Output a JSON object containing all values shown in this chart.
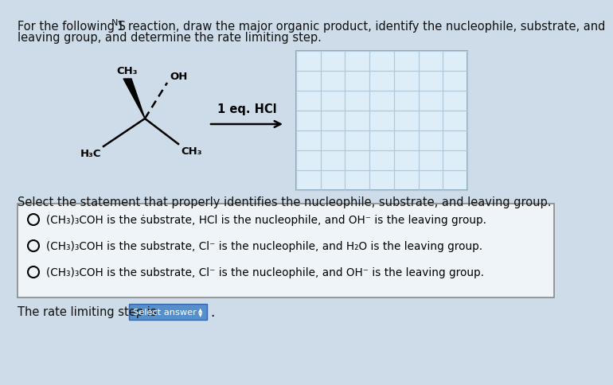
{
  "bg_color": "#cddce8",
  "text_color": "#111111",
  "title_part1": "For the following S",
  "title_sub": "N",
  "title_part2": "1 reaction, draw the major organic product, identify the nucleophile, substrate, and",
  "title_line2": "leaving group, and determine the rate limiting step.",
  "reagent": "1 eq. HCl",
  "select_label": "Select the statement that properly identifies the nucleophile, substrate, and leaving group.",
  "option1": "(CH₃)₃COH is the ṡubstrate, HCl is the nucleophile, and OH⁻ is the leaving group.",
  "option2": "(CH₃)₃COH is the substrate, Cl⁻ is the nucleophile, and H₂O is the leaving group.",
  "option3": "(CH₃)₃COH is the substrate, Cl⁻ is the nucleophile, and OH⁻ is the leaving group.",
  "rate_text": "The rate limiting step is",
  "grid_face": "#ddeef8",
  "grid_line": "#b0c8d8",
  "options_face": "#eef4f8",
  "options_edge": "#888888",
  "sel_box_face": "#5590cc",
  "sel_box_edge": "#3366aa"
}
